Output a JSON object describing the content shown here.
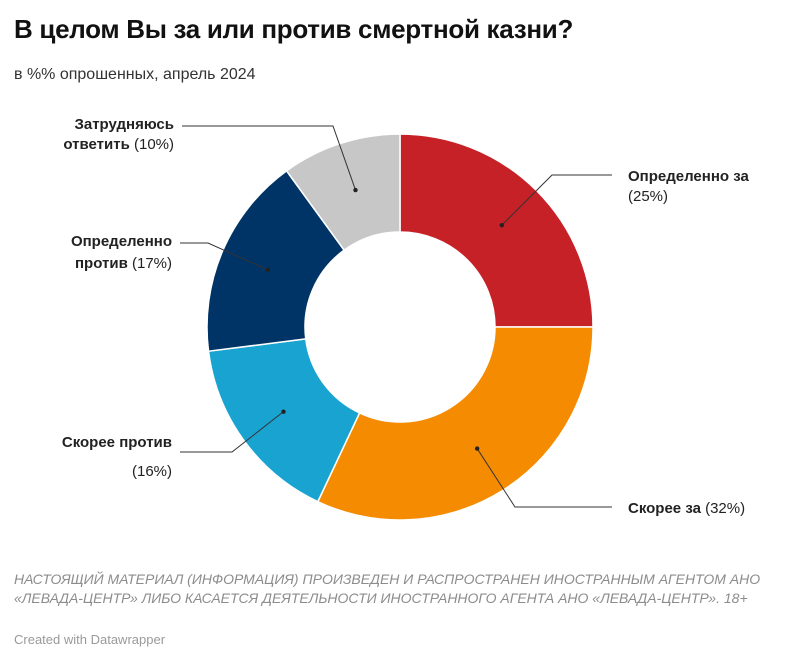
{
  "title": "В целом Вы за или против смертной казни?",
  "subtitle": "в %% опрошенных, апрель 2024",
  "disclaimer": "НАСТОЯЩИЙ МАТЕРИАЛ (ИНФОРМАЦИЯ) ПРОИЗВЕДЕН И РАСПРОСТРАНЕН ИНОСТРАННЫМ АГЕНТОМ АНО «ЛЕВАДА-ЦЕНТР» ЛИБО КАСАЕТСЯ ДЕЯТЕЛЬНОСТИ ИНОСТРАННОГО АГЕНТА АНО «ЛЕВАДА-ЦЕНТР». 18+",
  "credit": "Created with Datawrapper",
  "chart_data": {
    "type": "pie",
    "donut": true,
    "title": "В целом Вы за или против смертной казни?",
    "subtitle": "в %% опрошенных, апрель 2024",
    "slices": [
      {
        "label": "Определенно за",
        "value": 25,
        "value_label": "(25%)",
        "color": "#c62127"
      },
      {
        "label": "Скорее за",
        "value": 32,
        "value_label": "(32%)",
        "color": "#f58b00"
      },
      {
        "label": "Скорее против",
        "value": 16,
        "value_label": "(16%)",
        "color": "#19a3d0"
      },
      {
        "label": "Определенно против",
        "value": 17,
        "value_label": "(17%)",
        "color": "#003366"
      },
      {
        "label": "Затрудняюсь ответить",
        "value": 10,
        "value_label": "(10%)",
        "color": "#c7c7c7"
      }
    ]
  }
}
